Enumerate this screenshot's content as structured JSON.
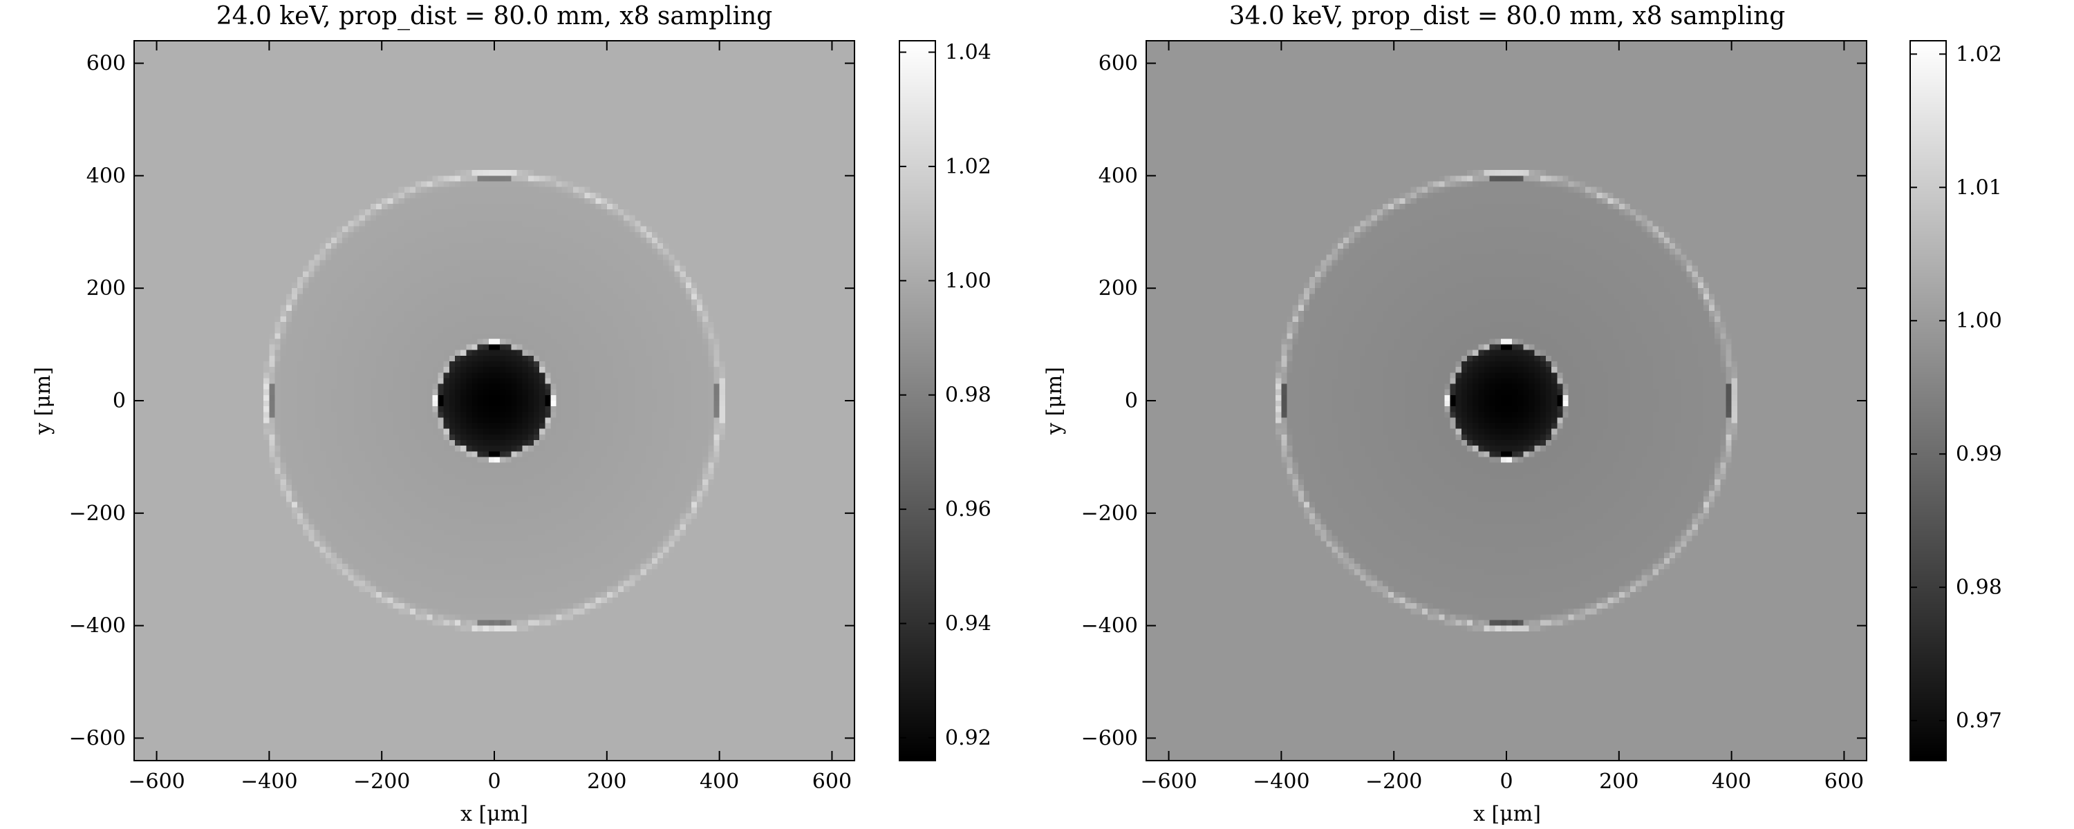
{
  "chart_data": [
    {
      "type": "heatmap",
      "title": "24.0 keV, prop_dist = 80.0 mm, x8 sampling",
      "xlabel": "x [μm]",
      "ylabel": "y [μm]",
      "xlim": [
        -640,
        640
      ],
      "ylim": [
        -640,
        640
      ],
      "xticks": [
        -600,
        -400,
        -200,
        0,
        200,
        400,
        600
      ],
      "yticks": [
        600,
        400,
        200,
        0,
        -200,
        -400,
        -600
      ],
      "xtick_labels": [
        "−600",
        "−400",
        "−200",
        "0",
        "200",
        "400",
        "600"
      ],
      "ytick_labels": [
        "600",
        "400",
        "200",
        "0",
        "−200",
        "−400",
        "−600"
      ],
      "grid": false,
      "colormap": "gray",
      "colorbar": {
        "range": [
          0.916,
          1.042
        ],
        "ticks": [
          1.04,
          1.02,
          1.0,
          0.98,
          0.96,
          0.94,
          0.92
        ],
        "tick_labels": [
          "1.04",
          "1.02",
          "1.00",
          "0.98",
          "0.96",
          "0.94",
          "0.92"
        ]
      },
      "pixel_size_um": 10,
      "features": {
        "background_value": 1.003,
        "outer_ring_radius_um": 400,
        "outer_disk_center_value": 0.993,
        "outer_disk_edge_value": 0.999,
        "outer_edge_fringe_amplitude": 0.022,
        "inner_core_radius_um": 100,
        "inner_core_center_value": 0.916,
        "inner_core_edge_value": 0.933,
        "inner_edge_fringe_amplitude": 0.03
      }
    },
    {
      "type": "heatmap",
      "title": "34.0 keV, prop_dist = 80.0 mm, x8 sampling",
      "xlabel": "x [μm]",
      "ylabel": "y [μm]",
      "xlim": [
        -640,
        640
      ],
      "ylim": [
        -640,
        640
      ],
      "xticks": [
        -600,
        -400,
        -200,
        0,
        200,
        400,
        600
      ],
      "yticks": [
        600,
        400,
        200,
        0,
        -200,
        -400,
        -600
      ],
      "xtick_labels": [
        "−600",
        "−400",
        "−200",
        "0",
        "200",
        "400",
        "600"
      ],
      "ytick_labels": [
        "600",
        "400",
        "200",
        "0",
        "−200",
        "−400",
        "−600"
      ],
      "grid": false,
      "colormap": "gray",
      "colorbar": {
        "range": [
          0.967,
          1.021
        ],
        "ticks": [
          1.02,
          1.01,
          1.0,
          0.99,
          0.98,
          0.97
        ],
        "tick_labels": [
          "1.02",
          "1.01",
          "1.00",
          "0.99",
          "0.98",
          "0.97"
        ]
      },
      "pixel_size_um": 10,
      "features": {
        "background_value": 0.999,
        "outer_ring_radius_um": 400,
        "outer_disk_center_value": 0.995,
        "outer_disk_edge_value": 0.997,
        "outer_edge_fringe_amplitude": 0.012,
        "inner_core_radius_um": 100,
        "inner_core_center_value": 0.967,
        "inner_core_edge_value": 0.974,
        "inner_edge_fringe_amplitude": 0.016
      }
    }
  ]
}
